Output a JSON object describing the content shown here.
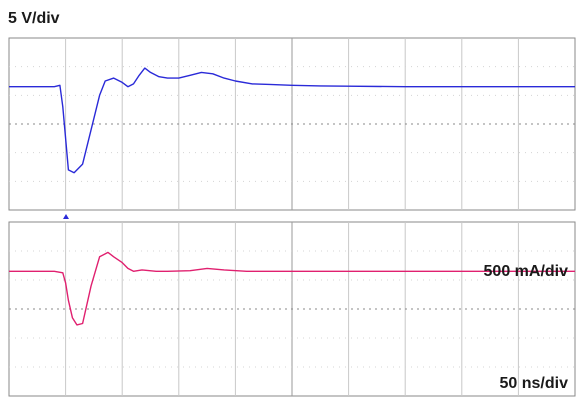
{
  "chart_data": [
    {
      "type": "line",
      "channel_label": "5 V/div",
      "grid": true,
      "divisions": {
        "x": 10,
        "y": 6
      },
      "trace_color": "#2a2ad8",
      "series": [
        {
          "x": [
            0,
            0.4,
            0.8,
            0.9,
            0.95,
            1.0,
            1.05,
            1.15,
            1.3,
            1.45,
            1.6,
            1.7,
            1.85,
            2.0,
            2.1,
            2.2,
            2.3,
            2.4,
            2.5,
            2.65,
            2.8,
            3.0,
            3.2,
            3.4,
            3.6,
            3.8,
            4.0,
            4.3,
            4.6,
            5.0,
            5.5,
            6.0,
            7.0,
            8.0,
            9.0,
            10.0
          ],
          "y": [
            4.3,
            4.3,
            4.3,
            4.35,
            3.6,
            2.5,
            1.4,
            1.3,
            1.6,
            2.8,
            4.0,
            4.5,
            4.6,
            4.45,
            4.3,
            4.4,
            4.7,
            4.95,
            4.8,
            4.65,
            4.6,
            4.6,
            4.7,
            4.8,
            4.75,
            4.6,
            4.5,
            4.4,
            4.38,
            4.35,
            4.33,
            4.32,
            4.3,
            4.3,
            4.3,
            4.3
          ]
        }
      ]
    },
    {
      "type": "line",
      "channel_label": "500 mA/div",
      "time_label": "50 ns/div",
      "grid": true,
      "divisions": {
        "x": 10,
        "y": 6
      },
      "trace_color": "#e0206f",
      "series": [
        {
          "x": [
            0,
            0.4,
            0.8,
            0.95,
            1.0,
            1.05,
            1.12,
            1.2,
            1.3,
            1.45,
            1.6,
            1.75,
            1.85,
            2.0,
            2.1,
            2.2,
            2.35,
            2.6,
            2.8,
            3.2,
            3.5,
            3.8,
            4.2,
            5.0,
            6.0,
            7.0,
            8.0,
            9.0,
            10.0
          ],
          "y": [
            4.3,
            4.3,
            4.3,
            4.25,
            3.9,
            3.3,
            2.7,
            2.45,
            2.5,
            3.8,
            4.8,
            4.95,
            4.8,
            4.6,
            4.4,
            4.3,
            4.35,
            4.3,
            4.3,
            4.32,
            4.4,
            4.35,
            4.3,
            4.3,
            4.3,
            4.3,
            4.3,
            4.3,
            4.3
          ]
        }
      ]
    }
  ]
}
